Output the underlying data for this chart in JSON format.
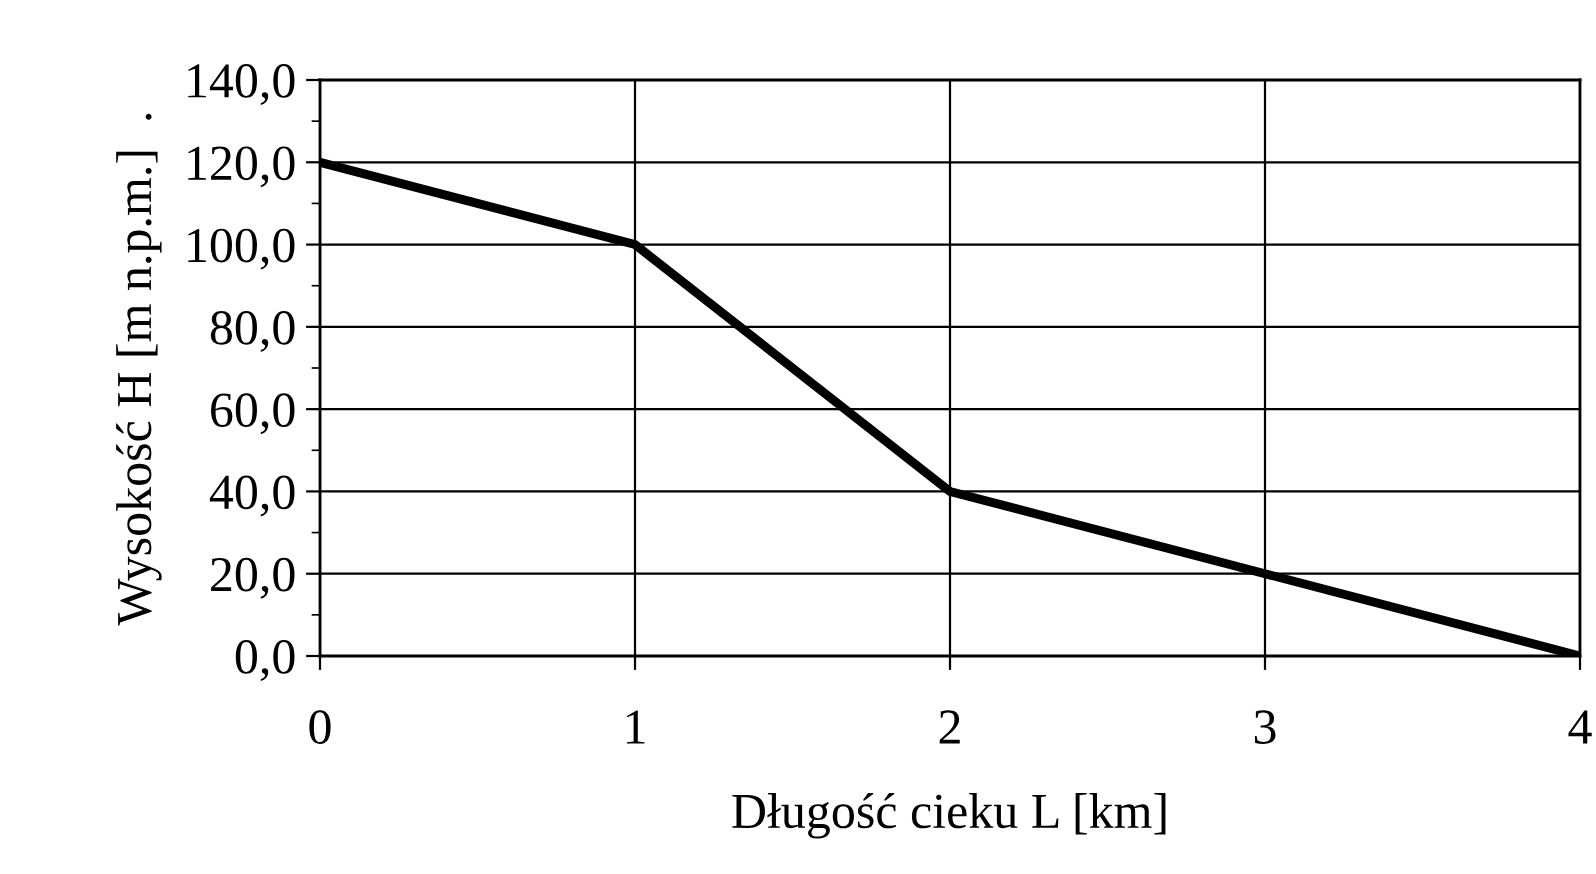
{
  "chart_data": {
    "type": "line",
    "xlabel": "Długość cieku L [km]",
    "ylabel": "Wysokość H [m n.p.m.]  .",
    "x": [
      0,
      1,
      2,
      3,
      4
    ],
    "series": [
      {
        "color": "#000000",
        "values": [
          120,
          100,
          40,
          20,
          0
        ]
      }
    ],
    "xlim": [
      0,
      4
    ],
    "xticks": [
      0,
      1,
      2,
      3,
      4
    ],
    "ylim": [
      0,
      140
    ],
    "yticks": [
      {
        "value": 0,
        "label": "0,0"
      },
      {
        "value": 10,
        "label": null
      },
      {
        "value": 20,
        "label": "20,0"
      },
      {
        "value": 30,
        "label": null
      },
      {
        "value": 40,
        "label": "40,0"
      },
      {
        "value": 50,
        "label": null
      },
      {
        "value": 60,
        "label": "60,0"
      },
      {
        "value": 70,
        "label": null
      },
      {
        "value": 80,
        "label": "80,0"
      },
      {
        "value": 90,
        "label": null
      },
      {
        "value": 100,
        "label": "100,0"
      },
      {
        "value": 110,
        "label": null
      },
      {
        "value": 120,
        "label": "120,0"
      },
      {
        "value": 130,
        "label": null
      },
      {
        "value": 140,
        "label": "140,0"
      }
    ],
    "grid": true,
    "marker": "none",
    "line_style": "solid",
    "legend": false
  }
}
